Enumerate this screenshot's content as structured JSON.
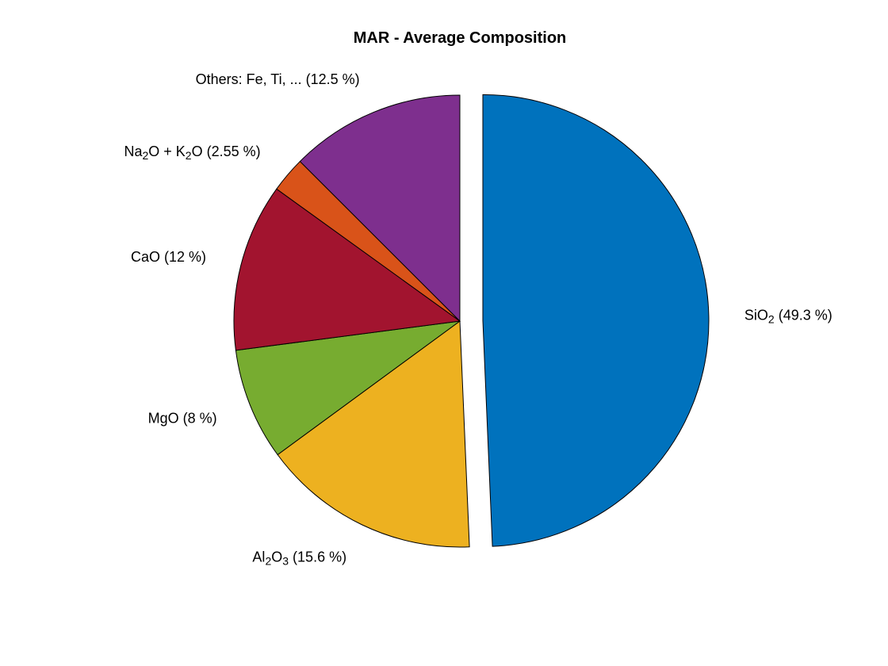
{
  "chart_data": {
    "type": "pie",
    "title": "MAR - Average Composition",
    "start_angle_deg": 90,
    "direction": "clockwise",
    "exploded": [
      0
    ],
    "slices": [
      {
        "name": "SiO2",
        "label_parts": [
          [
            "SiO",
            ""
          ],
          [
            "2",
            "sub"
          ],
          [
            " (49.3 %)",
            ""
          ]
        ],
        "value": 49.3,
        "color": "#0072BD"
      },
      {
        "name": "Al2O3",
        "label_parts": [
          [
            "Al",
            ""
          ],
          [
            "2",
            "sub"
          ],
          [
            "O",
            ""
          ],
          [
            "3",
            "sub"
          ],
          [
            " (15.6 %)",
            ""
          ]
        ],
        "value": 15.6,
        "color": "#EDB120"
      },
      {
        "name": "MgO",
        "label_parts": [
          [
            "MgO (8 %)",
            ""
          ]
        ],
        "value": 8.0,
        "color": "#77AC30"
      },
      {
        "name": "CaO",
        "label_parts": [
          [
            "CaO (12 %)",
            ""
          ]
        ],
        "value": 12.0,
        "color": "#A2142F"
      },
      {
        "name": "Na2O + K2O",
        "label_parts": [
          [
            "Na",
            ""
          ],
          [
            "2",
            "sub"
          ],
          [
            "O + K",
            ""
          ],
          [
            "2",
            "sub"
          ],
          [
            "O (2.55 %)",
            ""
          ]
        ],
        "value": 2.55,
        "color": "#D95319"
      },
      {
        "name": "Others: Fe, Ti, ...",
        "label_parts": [
          [
            "Others: Fe, Ti, ... (12.5 %)",
            ""
          ]
        ],
        "value": 12.5,
        "color": "#7E2F8E"
      }
    ]
  }
}
